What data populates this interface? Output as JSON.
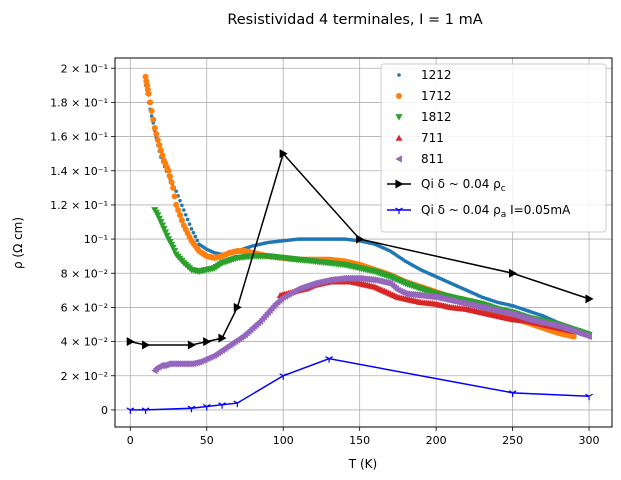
{
  "chart_data": {
    "type": "scatter",
    "title": "Resistividad 4 terminales, I = 1 mA",
    "xlabel": "T (K)",
    "ylabel": "ρ (Ω cm)",
    "xlim": [
      -10,
      315
    ],
    "ylim": [
      -0.01,
      0.206
    ],
    "grid": true,
    "legend_position": "top-right",
    "x_ticks": [
      0,
      50,
      100,
      150,
      200,
      250,
      300
    ],
    "x_tick_labels": [
      "0",
      "50",
      "100",
      "150",
      "200",
      "250",
      "300"
    ],
    "y_ticks": [
      0,
      0.02,
      0.04,
      0.06,
      0.08,
      0.1,
      0.12,
      0.14,
      0.16,
      0.18,
      0.2
    ],
    "y_tick_labels": [
      "0",
      "2 × 10⁻²",
      "4 × 10⁻²",
      "6 × 10⁻²",
      "8 × 10⁻²",
      "10⁻¹",
      "1.2 × 10⁻¹",
      "1.4 × 10⁻¹",
      "1.6 × 10⁻¹",
      "1.8 × 10⁻¹",
      "2 × 10⁻¹"
    ],
    "series": [
      {
        "name": "1212",
        "marker": "dot",
        "color": "#1f77b4",
        "x": [
          10,
          12,
          15,
          18,
          20,
          25,
          30,
          35,
          40,
          45,
          50,
          55,
          60,
          70,
          80,
          90,
          100,
          110,
          120,
          130,
          140,
          150,
          160,
          170,
          180,
          190,
          200,
          210,
          220,
          230,
          240,
          250,
          260,
          270,
          280,
          290,
          300
        ],
        "y": [
          0.19,
          0.18,
          0.168,
          0.155,
          0.148,
          0.137,
          0.128,
          0.117,
          0.106,
          0.097,
          0.094,
          0.092,
          0.091,
          0.093,
          0.096,
          0.098,
          0.099,
          0.1,
          0.1,
          0.1,
          0.1,
          0.099,
          0.097,
          0.093,
          0.087,
          0.082,
          0.078,
          0.074,
          0.07,
          0.066,
          0.063,
          0.061,
          0.058,
          0.055,
          0.051,
          0.047,
          0.044
        ]
      },
      {
        "name": "1712",
        "marker": "circle",
        "color": "#ff7f0e",
        "x": [
          10,
          11,
          12,
          14,
          16,
          18,
          20,
          22,
          25,
          28,
          30,
          35,
          40,
          45,
          50,
          55,
          60,
          65,
          70,
          75,
          80,
          90,
          100,
          110,
          120,
          130,
          140,
          150,
          160,
          170,
          180,
          190,
          200,
          210,
          220,
          230,
          240,
          250,
          260,
          270,
          280,
          290
        ],
        "y": [
          0.195,
          0.19,
          0.185,
          0.175,
          0.165,
          0.158,
          0.152,
          0.146,
          0.14,
          0.13,
          0.12,
          0.108,
          0.099,
          0.093,
          0.09,
          0.089,
          0.09,
          0.092,
          0.093,
          0.093,
          0.092,
          0.09,
          0.089,
          0.088,
          0.088,
          0.088,
          0.087,
          0.085,
          0.082,
          0.079,
          0.075,
          0.072,
          0.069,
          0.066,
          0.063,
          0.06,
          0.057,
          0.054,
          0.051,
          0.048,
          0.045,
          0.043
        ]
      },
      {
        "name": "1812",
        "marker": "triangle-down",
        "color": "#2ca02c",
        "x": [
          16,
          18,
          20,
          22,
          25,
          28,
          30,
          35,
          40,
          45,
          50,
          55,
          60,
          70,
          80,
          90,
          100,
          110,
          120,
          130,
          140,
          150,
          160,
          170,
          180,
          190,
          200,
          210,
          220,
          230,
          240,
          250,
          260,
          270,
          280,
          290,
          300
        ],
        "y": [
          0.117,
          0.114,
          0.11,
          0.106,
          0.1,
          0.095,
          0.091,
          0.086,
          0.082,
          0.081,
          0.082,
          0.083,
          0.086,
          0.089,
          0.09,
          0.09,
          0.089,
          0.088,
          0.087,
          0.086,
          0.085,
          0.083,
          0.081,
          0.078,
          0.074,
          0.071,
          0.068,
          0.066,
          0.064,
          0.062,
          0.059,
          0.057,
          0.054,
          0.052,
          0.05,
          0.047,
          0.044
        ]
      },
      {
        "name": "711",
        "marker": "triangle-up",
        "color": "#d62728",
        "x": [
          98,
          102,
          106,
          110,
          115,
          120,
          125,
          130,
          135,
          140,
          145,
          150,
          155,
          160,
          165,
          170,
          175,
          180,
          190,
          200,
          210,
          220,
          230,
          240,
          250,
          260,
          270,
          280,
          290
        ],
        "y": [
          0.067,
          0.068,
          0.069,
          0.07,
          0.071,
          0.073,
          0.074,
          0.075,
          0.075,
          0.075,
          0.075,
          0.074,
          0.073,
          0.072,
          0.07,
          0.068,
          0.066,
          0.065,
          0.063,
          0.062,
          0.06,
          0.059,
          0.057,
          0.055,
          0.053,
          0.052,
          0.05,
          0.048,
          0.046
        ]
      },
      {
        "name": "811",
        "marker": "triangle-left",
        "color": "#9467bd",
        "x": [
          16,
          18,
          20,
          22,
          25,
          30,
          35,
          40,
          45,
          50,
          55,
          60,
          65,
          70,
          75,
          80,
          85,
          90,
          95,
          100,
          110,
          120,
          130,
          140,
          150,
          160,
          170,
          175,
          180,
          190,
          200,
          210,
          220,
          230,
          240,
          250,
          260,
          270,
          280,
          290,
          300
        ],
        "y": [
          0.023,
          0.025,
          0.026,
          0.026,
          0.027,
          0.027,
          0.027,
          0.027,
          0.028,
          0.03,
          0.032,
          0.035,
          0.038,
          0.041,
          0.044,
          0.048,
          0.052,
          0.057,
          0.062,
          0.066,
          0.071,
          0.074,
          0.076,
          0.077,
          0.077,
          0.076,
          0.074,
          0.07,
          0.068,
          0.067,
          0.066,
          0.064,
          0.062,
          0.06,
          0.058,
          0.056,
          0.053,
          0.051,
          0.049,
          0.046,
          0.043
        ]
      },
      {
        "name": "Qi δ ~ 0.04 ρ_c",
        "legend_label": "Qi δ ~ 0.04 ρ",
        "legend_subscript": "c",
        "marker": "triangle-right",
        "color": "#000000",
        "line": true,
        "x": [
          0,
          10,
          40,
          50,
          60,
          70,
          100,
          150,
          250,
          300
        ],
        "y": [
          0.04,
          0.038,
          0.038,
          0.04,
          0.042,
          0.06,
          0.15,
          0.1,
          0.08,
          0.065
        ]
      },
      {
        "name": "Qi δ ~ 0.04 ρ_a I=0.05mA",
        "legend_label": "Qi δ ~ 0.04 ρ",
        "legend_subscript": "a",
        "legend_suffix": " I=0.05mA",
        "marker": "tri-down",
        "color": "#0000ff",
        "line": true,
        "x": [
          0,
          10,
          40,
          50,
          60,
          70,
          100,
          130,
          250,
          300
        ],
        "y": [
          0.0,
          0.0,
          0.001,
          0.002,
          0.003,
          0.004,
          0.02,
          0.03,
          0.01,
          0.008
        ]
      }
    ]
  }
}
